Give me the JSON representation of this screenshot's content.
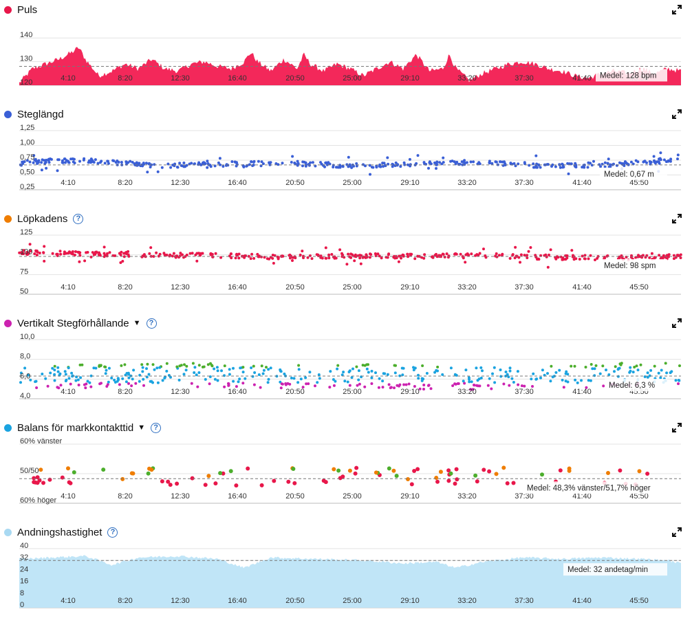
{
  "colors": {
    "grid": "#e3e3e3",
    "axis": "#bbbbbb",
    "avgline": "#777777"
  },
  "chart_data": [
    {
      "id": "puls",
      "type": "area",
      "title": "Puls",
      "dot_color": "#e8174a",
      "fill": "#f3285a",
      "help": false,
      "caret": false,
      "ylim": [
        120,
        145
      ],
      "yticks": [
        "140",
        "130",
        "120"
      ],
      "ytick_values": [
        140,
        130,
        120
      ],
      "xtick_labels": [
        "4:10",
        "8:20",
        "12:30",
        "16:40",
        "20:50",
        "25:00",
        "29:10",
        "33:20",
        "37:30",
        "41:40",
        "45:50"
      ],
      "avg_value": 128,
      "avg_label": "Medel: 128 bpm",
      "profile": [
        [
          0,
          121
        ],
        [
          2,
          127
        ],
        [
          4,
          129
        ],
        [
          6,
          131
        ],
        [
          8,
          134
        ],
        [
          9,
          136
        ],
        [
          10,
          131
        ],
        [
          12,
          124
        ],
        [
          14,
          126
        ],
        [
          16,
          129
        ],
        [
          18,
          127
        ],
        [
          20,
          131
        ],
        [
          22,
          127
        ],
        [
          24,
          126
        ],
        [
          26,
          129
        ],
        [
          28,
          130
        ],
        [
          30,
          128
        ],
        [
          32,
          127
        ],
        [
          34,
          130
        ],
        [
          35,
          134
        ],
        [
          36,
          130
        ],
        [
          38,
          126
        ],
        [
          40,
          131
        ],
        [
          42,
          127
        ],
        [
          43,
          133
        ],
        [
          44,
          129
        ],
        [
          46,
          126
        ],
        [
          48,
          129
        ],
        [
          50,
          127
        ],
        [
          52,
          124
        ],
        [
          54,
          127
        ],
        [
          56,
          130
        ],
        [
          58,
          127
        ],
        [
          60,
          133
        ],
        [
          62,
          126
        ],
        [
          64,
          127
        ],
        [
          65,
          133
        ],
        [
          66,
          127
        ],
        [
          68,
          122
        ],
        [
          70,
          125
        ],
        [
          72,
          127
        ],
        [
          74,
          129
        ],
        [
          76,
          130
        ],
        [
          78,
          129
        ],
        [
          80,
          127
        ],
        [
          82,
          126
        ],
        [
          84,
          124
        ],
        [
          86,
          123
        ],
        [
          88,
          125
        ],
        [
          90,
          126
        ],
        [
          92,
          125
        ],
        [
          94,
          127
        ],
        [
          96,
          125
        ],
        [
          98,
          127
        ],
        [
          100,
          126
        ]
      ]
    },
    {
      "id": "steglangd",
      "type": "scatter",
      "title": "Steglängd",
      "dot_color": "#3a5fd6",
      "point_color": "#3a5fd6",
      "help": false,
      "caret": false,
      "ylim": [
        0.25,
        1.25
      ],
      "yticks": [
        "1,25",
        "1,00",
        "0,75",
        "0,50",
        "0,25"
      ],
      "ytick_values": [
        1.25,
        1.0,
        0.75,
        0.5,
        0.25
      ],
      "xtick_labels": [
        "4:10",
        "8:20",
        "12:30",
        "16:40",
        "20:50",
        "25:00",
        "29:10",
        "33:20",
        "37:30",
        "41:40",
        "45:50"
      ],
      "avg_value": 0.67,
      "avg_label": "Medel: 0,67 m",
      "profile": [
        [
          0,
          0.73
        ],
        [
          10,
          0.74
        ],
        [
          20,
          0.66
        ],
        [
          30,
          0.68
        ],
        [
          40,
          0.7
        ],
        [
          50,
          0.66
        ],
        [
          60,
          0.68
        ],
        [
          70,
          0.72
        ],
        [
          80,
          0.65
        ],
        [
          90,
          0.68
        ],
        [
          95,
          0.72
        ],
        [
          100,
          0.76
        ]
      ]
    },
    {
      "id": "lopkadens",
      "type": "scatter",
      "title": "Löpkadens",
      "dot_color": "#ef7d00",
      "point_color": "#e8174a",
      "help": true,
      "caret": false,
      "ylim": [
        50,
        125
      ],
      "yticks": [
        "125",
        "100",
        "75",
        "50"
      ],
      "ytick_values": [
        125,
        100,
        75,
        50
      ],
      "xtick_labels": [
        "4:10",
        "8:20",
        "12:30",
        "16:40",
        "20:50",
        "25:00",
        "29:10",
        "33:20",
        "37:30",
        "41:40",
        "45:50"
      ],
      "avg_value": 98,
      "avg_label": "Medel: 98 spm",
      "profile": [
        [
          0,
          103
        ],
        [
          10,
          101
        ],
        [
          20,
          100
        ],
        [
          30,
          99
        ],
        [
          40,
          97
        ],
        [
          50,
          99
        ],
        [
          60,
          98
        ],
        [
          70,
          99
        ],
        [
          80,
          97
        ],
        [
          90,
          96
        ],
        [
          100,
          98
        ]
      ]
    },
    {
      "id": "vertikalt",
      "type": "scatter",
      "title": "Vertikalt Stegförhållande",
      "dot_color": "#cc22b0",
      "help": true,
      "caret": true,
      "ylim": [
        4,
        10
      ],
      "yticks": [
        "10,0",
        "8,0",
        "6,0",
        "4,0"
      ],
      "ytick_values": [
        10,
        8,
        6,
        4
      ],
      "xtick_labels": [
        "4:10",
        "8:20",
        "12:30",
        "16:40",
        "20:50",
        "25:00",
        "29:10",
        "33:20",
        "37:30",
        "41:40",
        "45:50"
      ],
      "avg_value": 6.3,
      "avg_label": "Medel: 6,3 %",
      "point_colors": [
        "#1aa3e0",
        "#cc22b0",
        "#4cae2c",
        "#ef7d00"
      ],
      "profile": [
        [
          0,
          6.2
        ],
        [
          10,
          6.3
        ],
        [
          20,
          6.4
        ],
        [
          30,
          6.4
        ],
        [
          40,
          6.2
        ],
        [
          50,
          6.3
        ],
        [
          60,
          6.2
        ],
        [
          70,
          6.0
        ],
        [
          80,
          6.1
        ],
        [
          90,
          6.4
        ],
        [
          100,
          6.6
        ]
      ]
    },
    {
      "id": "balans",
      "type": "scatter",
      "title": "Balans för markkontakttid",
      "dot_color": "#1aa3e0",
      "help": true,
      "caret": true,
      "ylim": [
        40,
        60
      ],
      "yticks": [
        "60% vänster",
        "50/50",
        "60% höger"
      ],
      "ytick_values": [
        60,
        50,
        40
      ],
      "xtick_labels": [
        "4:10",
        "8:20",
        "12:30",
        "16:40",
        "20:50",
        "25:00",
        "29:10",
        "33:20",
        "37:30",
        "41:40",
        "45:50"
      ],
      "avg_value": 48.3,
      "avg_label": "Medel: 48,3% vänster/51,7% höger",
      "point_colors": [
        "#ef7d00",
        "#4cae2c",
        "#e8174a"
      ],
      "profile": [
        [
          0,
          49
        ],
        [
          100,
          49
        ]
      ]
    },
    {
      "id": "andning",
      "type": "area",
      "title": "Andningshastighet",
      "dot_color": "#a9d9f2",
      "fill": "#c0e5f7",
      "help": true,
      "caret": false,
      "ylim": [
        0,
        40
      ],
      "yticks": [
        "40",
        "32",
        "24",
        "16",
        "8",
        "0"
      ],
      "ytick_values": [
        40,
        32,
        24,
        16,
        8,
        0
      ],
      "xtick_labels": [
        "4:10",
        "8:20",
        "12:30",
        "16:40",
        "20:50",
        "25:00",
        "29:10",
        "33:20",
        "37:30",
        "41:40",
        "45:50"
      ],
      "avg_value": 32,
      "avg_label": "Medel: 32 andetag/min",
      "profile": [
        [
          0,
          33
        ],
        [
          10,
          35
        ],
        [
          14,
          29
        ],
        [
          18,
          34
        ],
        [
          24,
          35
        ],
        [
          30,
          33
        ],
        [
          34,
          27
        ],
        [
          38,
          34
        ],
        [
          45,
          33
        ],
        [
          52,
          32
        ],
        [
          58,
          30
        ],
        [
          63,
          31
        ],
        [
          66,
          27
        ],
        [
          70,
          31
        ],
        [
          76,
          34
        ],
        [
          82,
          33
        ],
        [
          88,
          34
        ],
        [
          94,
          33
        ],
        [
          98,
          32
        ],
        [
          100,
          30
        ]
      ]
    }
  ]
}
